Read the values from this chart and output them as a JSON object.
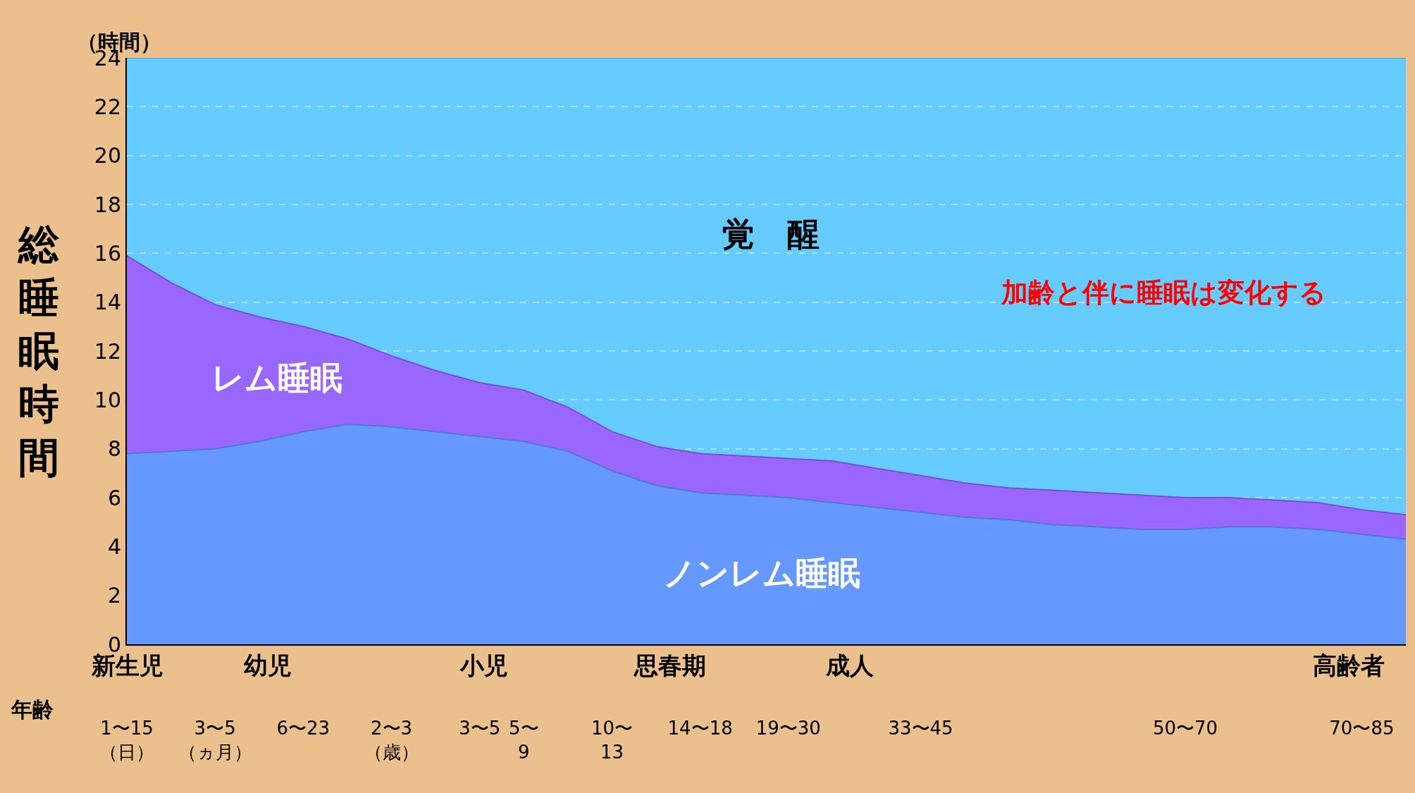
{
  "chart_data": {
    "type": "area",
    "stacked": true,
    "ylabel": "総睡眠時間",
    "xlabel": "年齢",
    "categories": [
      "1〜15\n（日）",
      null,
      "3〜5\n（ヵ月）",
      null,
      "6〜23",
      null,
      "2〜3\n（歳）",
      null,
      "3〜5",
      "5〜\n9",
      null,
      "10〜\n13",
      null,
      "14〜18",
      null,
      "19〜30",
      null,
      null,
      "33〜45",
      null,
      null,
      null,
      null,
      null,
      "50〜70",
      null,
      null,
      null,
      "70〜85",
      null
    ],
    "series": [
      {
        "name": "ノンレム睡眠",
        "color": "#6699ff",
        "values": [
          7.8,
          7.9,
          8.0,
          8.3,
          8.7,
          9.0,
          8.9,
          8.7,
          8.5,
          8.3,
          7.9,
          7.1,
          6.5,
          6.2,
          6.1,
          6.0,
          5.8,
          5.6,
          5.4,
          5.2,
          5.1,
          4.9,
          4.8,
          4.7,
          4.7,
          4.8,
          4.8,
          4.7,
          4.5,
          4.3
        ]
      },
      {
        "name": "レム睡眠",
        "color": "#9966ff",
        "values": [
          8.1,
          6.9,
          5.9,
          5.1,
          4.3,
          3.5,
          2.9,
          2.5,
          2.2,
          2.1,
          1.8,
          1.6,
          1.6,
          1.6,
          1.6,
          1.6,
          1.7,
          1.6,
          1.5,
          1.4,
          1.3,
          1.4,
          1.4,
          1.4,
          1.3,
          1.2,
          1.1,
          1.1,
          1.0,
          1.0
        ]
      },
      {
        "name": "覚　醒",
        "color": "#66ccff",
        "values": [
          8.1,
          9.2,
          10.1,
          10.6,
          11.0,
          11.5,
          12.2,
          12.8,
          13.3,
          13.6,
          14.3,
          15.3,
          15.9,
          16.2,
          16.3,
          16.4,
          16.5,
          16.8,
          17.1,
          17.4,
          17.6,
          17.7,
          17.8,
          17.9,
          18.0,
          18.0,
          18.1,
          18.2,
          18.5,
          18.7
        ]
      }
    ],
    "ylim": [
      0,
      24
    ],
    "yticks": [
      0,
      2,
      4,
      6,
      8,
      10,
      12,
      14,
      16,
      18,
      20,
      22,
      24
    ],
    "grid": "y",
    "legend": false,
    "annotations": [
      "（時間）",
      "新生児",
      "幼児",
      "小児",
      "思春期",
      "成人",
      "高齢者",
      "加齢と伴に睡眠は変化する"
    ]
  }
}
